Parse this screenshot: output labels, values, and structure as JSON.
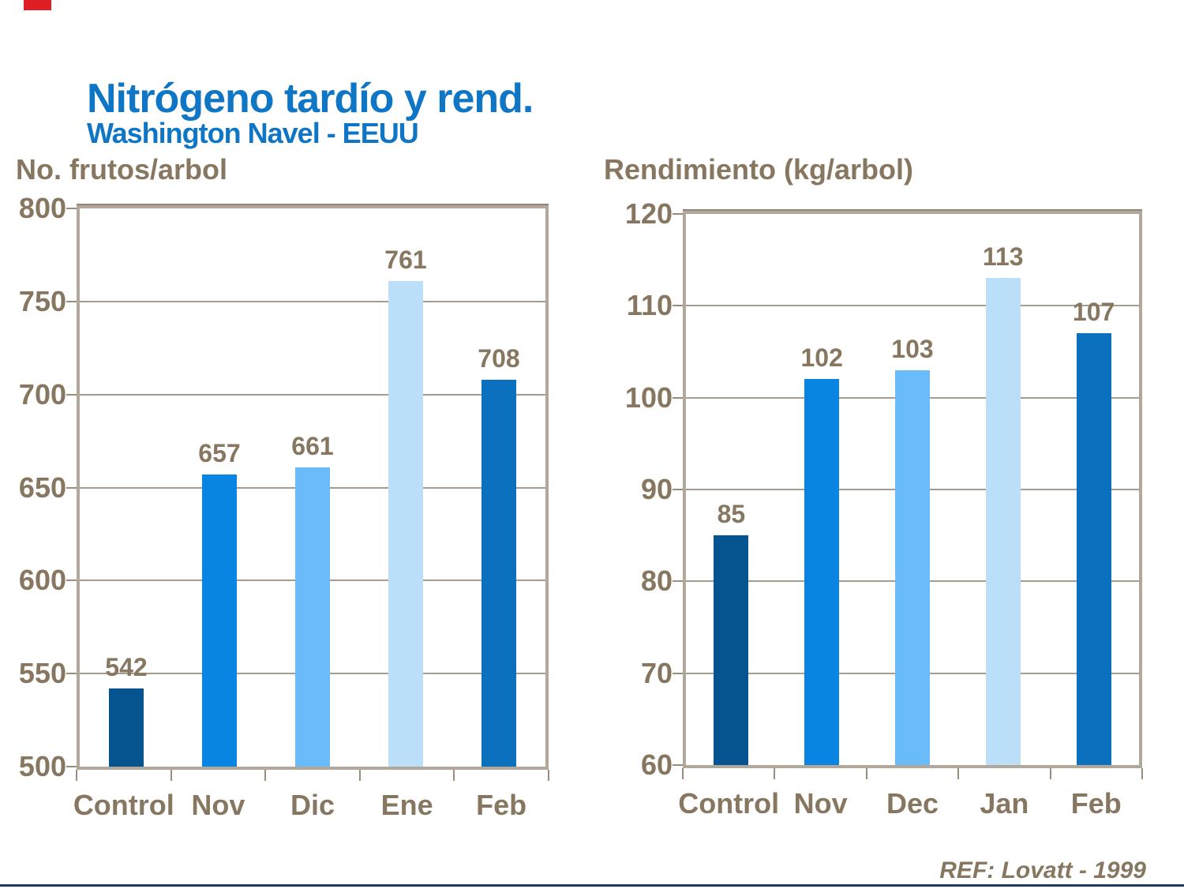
{
  "page": {
    "title": "Nitrógeno tardío y rend.",
    "subtitle": "Washington Navel - EEUU",
    "reference": "REF: Lovatt - 1999"
  },
  "colors": {
    "title_blue": "#0F76C6",
    "text_brown": "#877760",
    "grid_line": "#A79B8C",
    "frame_border": "#B3A79A",
    "frame_top_shadow": "#8F8578",
    "tick_mark": "#9A8D7C",
    "accent_red": "#E01E26",
    "footer_line_navy": "#1F3864",
    "bar_palette": [
      "#05538F",
      "#0885E3",
      "#69BCF9",
      "#BCDFF9",
      "#0B70BE"
    ]
  },
  "chart_data": [
    {
      "type": "bar",
      "title": "No. frutos/arbol",
      "categories": [
        "Control",
        "Nov",
        "Dic",
        "Ene",
        "Feb"
      ],
      "values": [
        542,
        657,
        661,
        761,
        708
      ],
      "ylim": [
        500,
        800
      ],
      "yticks": [
        800,
        750,
        700,
        650,
        600,
        550,
        500
      ],
      "grid": true,
      "legend": false,
      "value_labels": true
    },
    {
      "type": "bar",
      "title": "Rendimiento (kg/arbol)",
      "categories": [
        "Control",
        "Nov",
        "Dec",
        "Jan",
        "Feb"
      ],
      "values": [
        85,
        102,
        103,
        113,
        107
      ],
      "ylim": [
        60,
        120
      ],
      "yticks": [
        120,
        110,
        100,
        90,
        80,
        70,
        60
      ],
      "grid": true,
      "legend": false,
      "value_labels": true
    }
  ]
}
